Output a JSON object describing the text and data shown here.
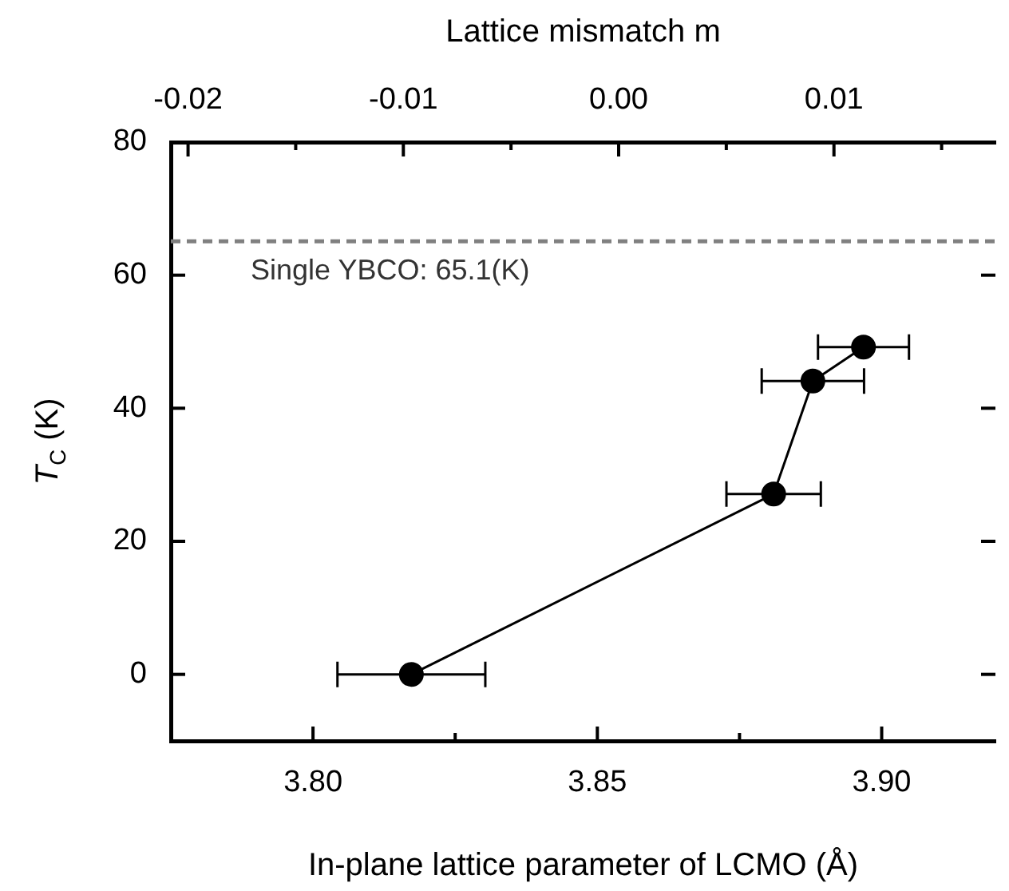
{
  "chart_data": {
    "type": "line",
    "xlabel": "In-plane lattice parameter of LCMO (Å)",
    "ylabel": "T$_{C}$ (K)",
    "x2label": "Lattice mismatch m",
    "x": [
      3.8173,
      3.881,
      3.8879,
      3.8968
    ],
    "series": [
      {
        "color": "#000000",
        "values": [
          0,
          27.1,
          44.1,
          49.2
        ],
        "xerrors": [
          0.013,
          0.0083,
          0.009,
          0.008
        ]
      }
    ],
    "xlim": [
      3.775,
      3.92
    ],
    "xticks": [
      {
        "value": 3.8,
        "label": "3.80"
      },
      {
        "value": 3.825,
        "label": null
      },
      3.85,
      {
        "value": 3.875,
        "label": null
      },
      {
        "value": 3.9,
        "label": "3.90"
      }
    ],
    "x2lim": [
      -0.0208,
      0.0175
    ],
    "x2ticks": [
      -0.02,
      {
        "value": -0.015,
        "label": null
      },
      -0.01,
      {
        "value": -0.005,
        "label": null
      },
      {
        "value": 0,
        "label": "0.00"
      },
      {
        "value": 0.005,
        "label": null
      },
      0.01,
      {
        "value": 0.015,
        "label": null
      }
    ],
    "ylim": [
      -10,
      80
    ],
    "yticks": [
      0,
      20,
      40,
      60,
      80
    ],
    "ref_lines": [
      {
        "axis": "y",
        "value": 65.1,
        "label": "Single YBCO: 65.1(K)",
        "color": "#808080",
        "line_style": "dashed"
      }
    ],
    "marker": "circle",
    "line_style": "solid",
    "grid": false,
    "legend": false
  }
}
